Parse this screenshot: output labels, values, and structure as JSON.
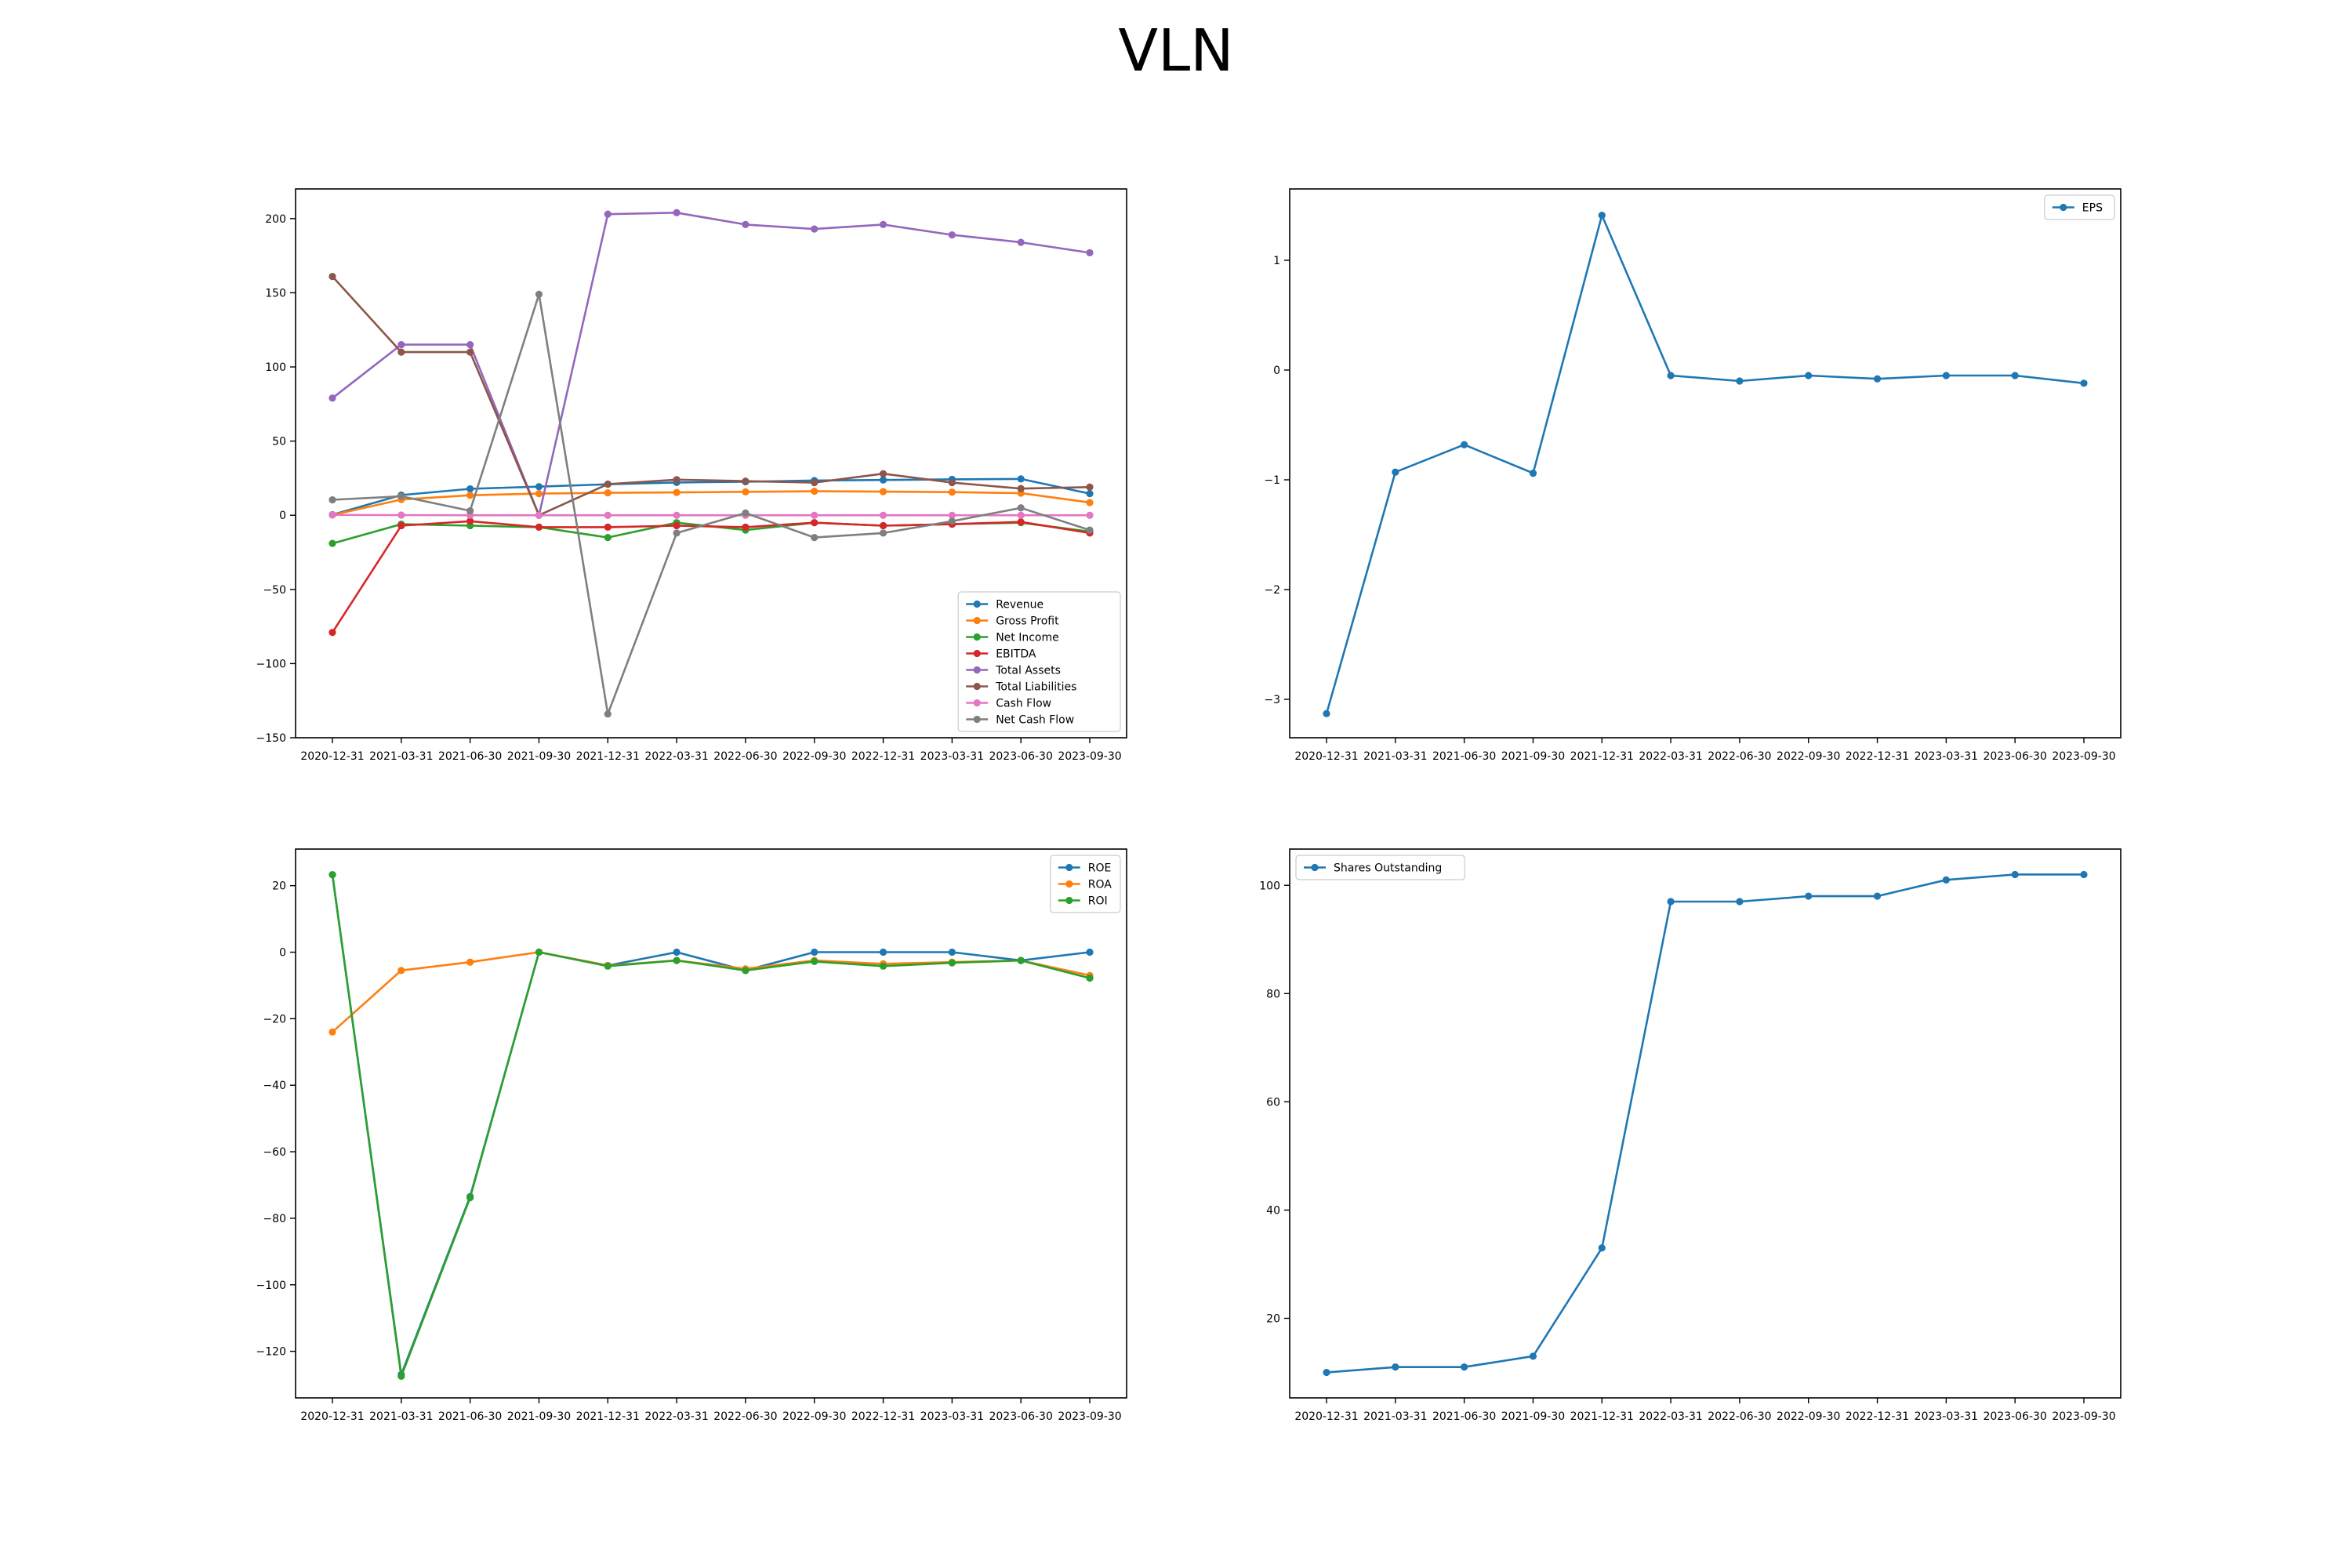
{
  "title": "VLN",
  "chart_data": [
    {
      "type": "line",
      "categories": [
        "2020-12-31",
        "2021-03-31",
        "2021-06-30",
        "2021-09-30",
        "2021-12-31",
        "2022-03-31",
        "2022-06-30",
        "2022-09-30",
        "2022-12-31",
        "2023-03-31",
        "2023-06-30",
        "2023-09-30"
      ],
      "ylim": [
        -150,
        220
      ],
      "yticks": [
        -150,
        -100,
        -50,
        0,
        50,
        100,
        150,
        200
      ],
      "ytick_labels": [
        "−150",
        "−100",
        "−50",
        "0",
        "50",
        "100",
        "150",
        "200"
      ],
      "legend": "lower-right",
      "series": [
        {
          "name": "Revenue",
          "color": "#1f77b4",
          "values": [
            0.4,
            13.6,
            17.8,
            19.3,
            20.9,
            22.1,
            22.6,
            23.4,
            23.8,
            24.2,
            24.5,
            14.6
          ]
        },
        {
          "name": "Gross Profit",
          "color": "#ff7f0e",
          "values": [
            0.2,
            10.6,
            13.5,
            14.6,
            15.1,
            15.4,
            15.8,
            16.2,
            15.9,
            15.6,
            14.9,
            8.6
          ]
        },
        {
          "name": "Net Income",
          "color": "#2ca02c",
          "values": [
            -19.0,
            -6.0,
            -7.0,
            -8.0,
            -15.0,
            -5.0,
            -10.0,
            -5.0,
            -7.0,
            -6.0,
            -5.0,
            -11.0
          ]
        },
        {
          "name": "EBITDA",
          "color": "#d62728",
          "values": [
            -79.0,
            -7.0,
            -4.0,
            -8.0,
            -8.0,
            -7.0,
            -8.0,
            -5.0,
            -7.0,
            -6.0,
            -4.5,
            -12.0
          ]
        },
        {
          "name": "Total Assets",
          "color": "#9467bd",
          "values": [
            79.0,
            115.0,
            115.0,
            0.0,
            203.0,
            204.0,
            196.0,
            193.0,
            196.0,
            189.0,
            184.0,
            177.0
          ]
        },
        {
          "name": "Total Liabilities",
          "color": "#8c564b",
          "values": [
            161.0,
            110.0,
            110.0,
            0.0,
            21.0,
            24.0,
            23.0,
            22.0,
            28.0,
            22.0,
            18.0,
            19.0
          ]
        },
        {
          "name": "Cash Flow",
          "color": "#e377c2",
          "values": [
            0.2,
            0.1,
            0.0,
            0.0,
            0.0,
            0.0,
            0.0,
            0.0,
            0.0,
            0.0,
            0.0,
            0.0
          ]
        },
        {
          "name": "Net Cash Flow",
          "color": "#7f7f7f",
          "values": [
            10.4,
            12.8,
            3.0,
            149.0,
            -134.0,
            -12.0,
            1.5,
            -15.0,
            -12.0,
            -4.0,
            5.0,
            -10.0
          ]
        }
      ]
    },
    {
      "type": "line",
      "categories": [
        "2020-12-31",
        "2021-03-31",
        "2021-06-30",
        "2021-09-30",
        "2021-12-31",
        "2022-03-31",
        "2022-06-30",
        "2022-09-30",
        "2022-12-31",
        "2023-03-31",
        "2023-06-30",
        "2023-09-30"
      ],
      "ylim": [
        -3.35,
        1.65
      ],
      "yticks": [
        -3,
        -2,
        -1,
        0,
        1
      ],
      "ytick_labels": [
        "−3",
        "−2",
        "−1",
        "0",
        "1"
      ],
      "legend": "upper-right",
      "series": [
        {
          "name": "EPS",
          "color": "#1f77b4",
          "values": [
            -3.13,
            -0.93,
            -0.68,
            -0.94,
            1.41,
            -0.05,
            -0.1,
            -0.05,
            -0.08,
            -0.05,
            -0.05,
            -0.12
          ]
        }
      ]
    },
    {
      "type": "line",
      "categories": [
        "2020-12-31",
        "2021-03-31",
        "2021-06-30",
        "2021-09-30",
        "2021-12-31",
        "2022-03-31",
        "2022-06-30",
        "2022-09-30",
        "2022-12-31",
        "2023-03-31",
        "2023-06-30",
        "2023-09-30"
      ],
      "ylim": [
        -134,
        31
      ],
      "yticks": [
        -120,
        -100,
        -80,
        -60,
        -40,
        -20,
        0,
        20
      ],
      "ytick_labels": [
        "−120",
        "−100",
        "−80",
        "−60",
        "−40",
        "−20",
        "0",
        "20"
      ],
      "legend": "upper-right",
      "series": [
        {
          "name": "ROE",
          "color": "#1f77b4",
          "values": [
            23.3,
            -127.0,
            -73.5,
            0.0,
            -4.0,
            0.0,
            -5.5,
            0.0,
            0.0,
            0.0,
            -2.5,
            0.0
          ]
        },
        {
          "name": "ROA",
          "color": "#ff7f0e",
          "values": [
            -24.0,
            -5.5,
            -3.0,
            0.0,
            -4.0,
            -2.5,
            -5.0,
            -2.5,
            -3.5,
            -3.0,
            -2.5,
            -7.0
          ]
        },
        {
          "name": "ROI",
          "color": "#2ca02c",
          "values": [
            23.3,
            -127.5,
            -73.8,
            0.0,
            -4.2,
            -2.5,
            -5.5,
            -2.8,
            -4.2,
            -3.2,
            -2.5,
            -7.8
          ]
        }
      ]
    },
    {
      "type": "line",
      "categories": [
        "2020-12-31",
        "2021-03-31",
        "2021-06-30",
        "2021-09-30",
        "2021-12-31",
        "2022-03-31",
        "2022-06-30",
        "2022-09-30",
        "2022-12-31",
        "2023-03-31",
        "2023-06-30",
        "2023-09-30"
      ],
      "ylim": [
        5.3,
        106.7
      ],
      "yticks": [
        20,
        40,
        60,
        80,
        100
      ],
      "ytick_labels": [
        "20",
        "40",
        "60",
        "80",
        "100"
      ],
      "legend": "upper-left",
      "series": [
        {
          "name": "Shares Outstanding",
          "color": "#1f77b4",
          "values": [
            10.0,
            11.0,
            11.0,
            13.0,
            33.0,
            97.0,
            97.0,
            98.0,
            98.0,
            101.0,
            102.0,
            102.0
          ]
        }
      ]
    }
  ]
}
